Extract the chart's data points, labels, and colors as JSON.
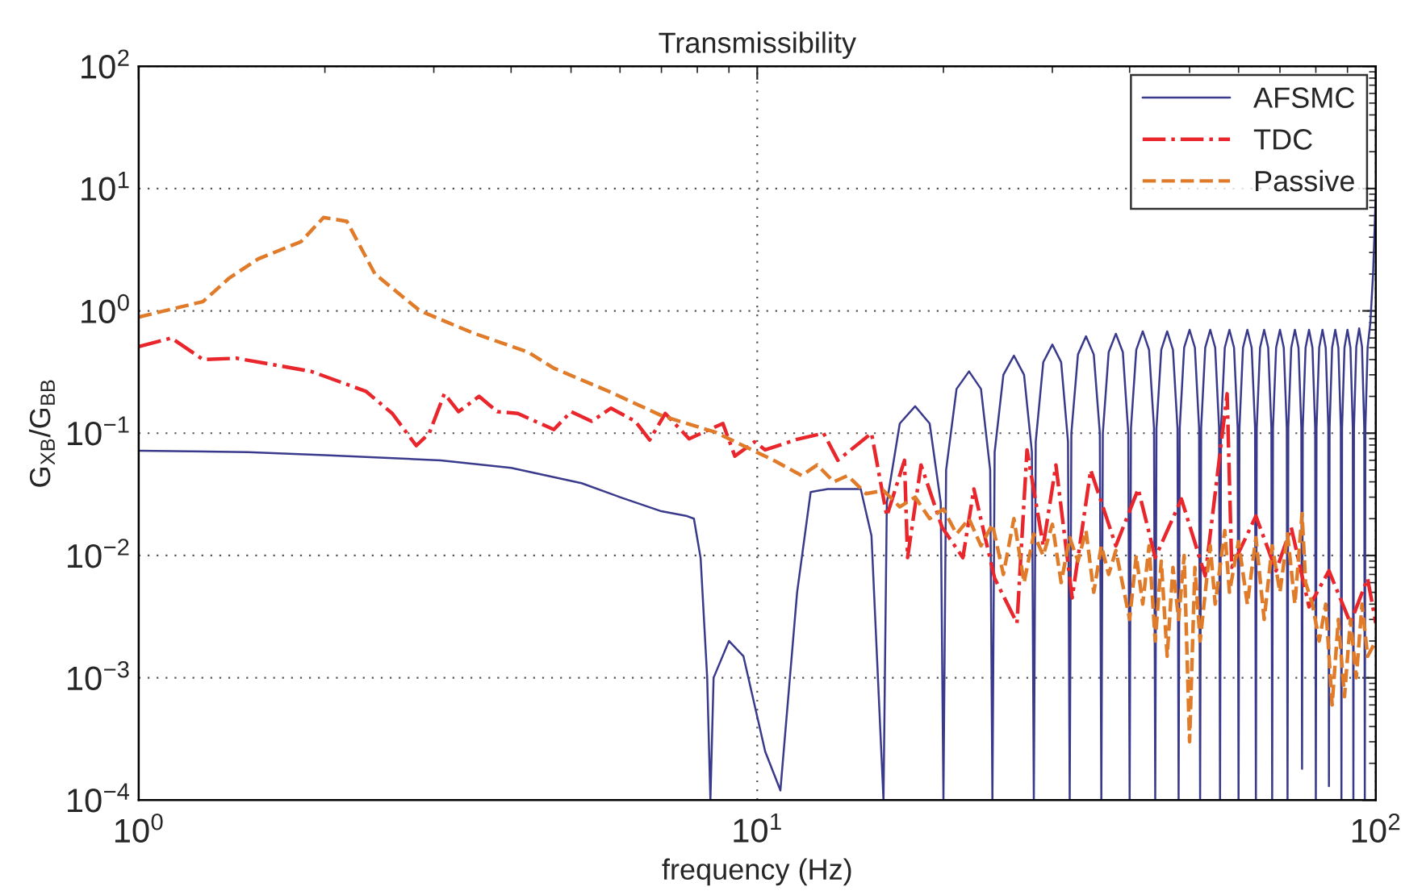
{
  "chart_data": {
    "type": "line",
    "title": "Transmissibility",
    "xlabel": "frequency (Hz)",
    "ylabel": "G$_{XB}$/G$_{BB}$",
    "log": "xy",
    "grid": true,
    "legend": "top right",
    "xlim": [
      1,
      100
    ],
    "ylim": [
      0.0001,
      100
    ],
    "xticks": [
      {
        "value": 1,
        "label": "10$^{0}$"
      },
      {
        "value": 10,
        "label": "10$^{1}$"
      },
      {
        "value": 100,
        "label": "10$^{2}$"
      }
    ],
    "yticks": [
      {
        "value": 0.0001,
        "label": "10$^{−4}$"
      },
      {
        "value": 0.001,
        "label": "10$^{−3}$"
      },
      {
        "value": 0.01,
        "label": "10$^{−2}$"
      },
      {
        "value": 0.1,
        "label": "10$^{−1}$"
      },
      {
        "value": 1,
        "label": "10$^{0}$"
      },
      {
        "value": 10,
        "label": "10$^{1}$"
      },
      {
        "value": 100,
        "label": "10$^{2}$"
      }
    ],
    "series": [
      {
        "name": "AFSMC",
        "color": "#3a3a8c",
        "line_style": "solid",
        "x": [
          1,
          1.5,
          2,
          3.08,
          4,
          5.2,
          6,
          7,
          7.7,
          7.9,
          8.1,
          8.3,
          8.4,
          8.5,
          9,
          9.5,
          10.3,
          10.9,
          11.6,
          12.2,
          13,
          14.7,
          15.3,
          16,
          16.2,
          17,
          18,
          19,
          19.8,
          20,
          20.2,
          21,
          22,
          23,
          23.8,
          24,
          24.2,
          25,
          26,
          27,
          27.8,
          28,
          28.2,
          29,
          30,
          31,
          31.8,
          32,
          32.2,
          33,
          34,
          35,
          35.8,
          36,
          36.2,
          37,
          38,
          39,
          39.8,
          40,
          40.2,
          41,
          42,
          43,
          43.8,
          44,
          44.2,
          45,
          46,
          47,
          47.8,
          48,
          48.2,
          49,
          50,
          51,
          51.8,
          52,
          52.2,
          53,
          54,
          55,
          55.8,
          56,
          56.2,
          57,
          58,
          59,
          59.8,
          60,
          60.2,
          61,
          62,
          63,
          63.8,
          64,
          64.2,
          65,
          66,
          67,
          67.8,
          68,
          68.2,
          69,
          70,
          71,
          71.8,
          72,
          72.2,
          73,
          74,
          75,
          75.8,
          76,
          76.2,
          77,
          78,
          79,
          79.8,
          80,
          80.2,
          81,
          82,
          83,
          83.8,
          84,
          84.2,
          85,
          86,
          87,
          87.8,
          88,
          88.2,
          89,
          90,
          91,
          91.8,
          92,
          92.2,
          93,
          94,
          95,
          95.8,
          96,
          96.2,
          97,
          98,
          99,
          100
        ],
        "values": [
          0.072,
          0.07,
          0.066,
          0.06,
          0.052,
          0.039,
          0.03,
          0.023,
          0.021,
          0.02,
          0.0095,
          0.001,
          0.0001,
          0.001,
          0.002,
          0.0015,
          0.00025,
          0.00012,
          0.005,
          0.033,
          0.035,
          0.035,
          0.0145,
          0.0001,
          0.027,
          0.12,
          0.166,
          0.12,
          0.027,
          0.0001,
          0.05,
          0.23,
          0.32,
          0.23,
          0.05,
          0.0001,
          0.07,
          0.3,
          0.43,
          0.3,
          0.07,
          0.0001,
          0.085,
          0.38,
          0.53,
          0.38,
          0.085,
          0.0001,
          0.1,
          0.44,
          0.62,
          0.44,
          0.1,
          0.0001,
          0.1,
          0.46,
          0.65,
          0.46,
          0.1,
          0.0001,
          0.11,
          0.48,
          0.68,
          0.48,
          0.11,
          0.0001,
          0.11,
          0.48,
          0.68,
          0.48,
          0.11,
          0.0001,
          0.11,
          0.5,
          0.7,
          0.5,
          0.11,
          0.0001,
          0.11,
          0.5,
          0.7,
          0.5,
          0.11,
          0.0001,
          0.11,
          0.5,
          0.7,
          0.5,
          0.11,
          0.0001,
          0.11,
          0.5,
          0.7,
          0.5,
          0.11,
          0.0001,
          0.11,
          0.5,
          0.7,
          0.5,
          0.11,
          0.0001,
          0.11,
          0.5,
          0.7,
          0.5,
          0.11,
          0.0001,
          0.11,
          0.5,
          0.7,
          0.5,
          0.11,
          0.00018,
          0.11,
          0.5,
          0.7,
          0.5,
          0.11,
          0.0001,
          0.11,
          0.5,
          0.7,
          0.5,
          0.11,
          0.00013,
          0.11,
          0.5,
          0.7,
          0.5,
          0.11,
          0.0001,
          0.11,
          0.5,
          0.7,
          0.5,
          0.11,
          0.0001,
          0.11,
          0.51,
          0.72,
          0.51,
          0.11,
          0.0001,
          0.11,
          0.5,
          0.8,
          2,
          9
        ]
      },
      {
        "name": "TDC",
        "color": "#e8262b",
        "line_style": "dashdot",
        "x": [
          1,
          1.13,
          1.27,
          1.44,
          1.9,
          2.33,
          2.57,
          2.81,
          2.95,
          3.12,
          3.29,
          3.55,
          3.8,
          4.1,
          4.69,
          5,
          5.4,
          5.8,
          6.35,
          6.7,
          7.1,
          7.76,
          8.8,
          9.2,
          9.9,
          10.3,
          11.6,
          12.8,
          13.5,
          15.3,
          16.2,
          17.3,
          17.5,
          18.4,
          19.9,
          21.5,
          22.4,
          24.2,
          26.3,
          27.3,
          29,
          30.4,
          32.3,
          34.6,
          38,
          41.3,
          44,
          48.5,
          53,
          57.5,
          58.5,
          64,
          69,
          73,
          78,
          84,
          91,
          97,
          100
        ],
        "values": [
          0.51,
          0.6,
          0.4,
          0.41,
          0.32,
          0.22,
          0.145,
          0.079,
          0.1,
          0.21,
          0.15,
          0.2,
          0.15,
          0.145,
          0.107,
          0.15,
          0.125,
          0.16,
          0.125,
          0.088,
          0.145,
          0.09,
          0.12,
          0.065,
          0.085,
          0.073,
          0.089,
          0.1,
          0.06,
          0.1,
          0.021,
          0.06,
          0.0096,
          0.055,
          0.017,
          0.0096,
          0.035,
          0.0065,
          0.0028,
          0.073,
          0.012,
          0.055,
          0.0045,
          0.05,
          0.012,
          0.035,
          0.0096,
          0.029,
          0.0068,
          0.21,
          0.008,
          0.021,
          0.0075,
          0.017,
          0.0038,
          0.0075,
          0.0028,
          0.0065,
          0.0028
        ]
      },
      {
        "name": "Passive",
        "color": "#e07b2a",
        "line_style": "dashed",
        "x": [
          1,
          1.27,
          1.4,
          1.56,
          1.83,
          1.99,
          2.17,
          2.41,
          2.85,
          3.47,
          4.26,
          4.69,
          5.75,
          7.03,
          8.55,
          10.7,
          11.8,
          12.5,
          13.3,
          14,
          15,
          16,
          17,
          18,
          19,
          20,
          21,
          22,
          23,
          24,
          25,
          26,
          27,
          28,
          29,
          30,
          31,
          32,
          33,
          34,
          35,
          36,
          37,
          38,
          40,
          41,
          42,
          43,
          44,
          45,
          46,
          47,
          48,
          49,
          50,
          51,
          52,
          54,
          55,
          57,
          58,
          60,
          62,
          64,
          66,
          68,
          70,
          72,
          74,
          76,
          77,
          79,
          81,
          83,
          85,
          87,
          89,
          91,
          93,
          95,
          97,
          100
        ],
        "values": [
          0.89,
          1.19,
          1.85,
          2.66,
          3.68,
          5.8,
          5.4,
          2.0,
          1.0,
          0.66,
          0.46,
          0.34,
          0.22,
          0.138,
          0.102,
          0.059,
          0.045,
          0.055,
          0.04,
          0.045,
          0.032,
          0.034,
          0.025,
          0.03,
          0.02,
          0.024,
          0.015,
          0.02,
          0.012,
          0.018,
          0.007,
          0.02,
          0.006,
          0.015,
          0.01,
          0.018,
          0.006,
          0.014,
          0.009,
          0.016,
          0.005,
          0.012,
          0.007,
          0.011,
          0.003,
          0.01,
          0.004,
          0.012,
          0.002,
          0.009,
          0.0015,
          0.008,
          0.003,
          0.01,
          0.0003,
          0.008,
          0.002,
          0.012,
          0.004,
          0.016,
          0.005,
          0.013,
          0.004,
          0.014,
          0.003,
          0.012,
          0.005,
          0.015,
          0.004,
          0.022,
          0.006,
          0.004,
          0.002,
          0.004,
          0.0006,
          0.003,
          0.0007,
          0.003,
          0.001,
          0.004,
          0.0015,
          0.002
        ]
      }
    ]
  }
}
